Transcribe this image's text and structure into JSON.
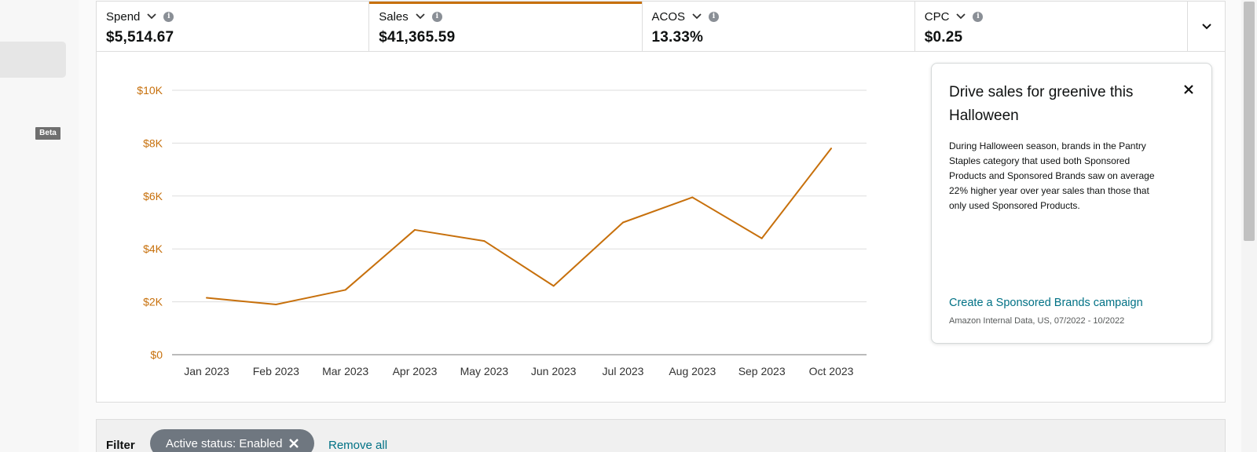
{
  "sidebar": {
    "beta_badge": "Beta"
  },
  "metrics": [
    {
      "label": "Spend",
      "value": "$5,514.67",
      "selected": false
    },
    {
      "label": "Sales",
      "value": "$41,365.59",
      "selected": true
    },
    {
      "label": "ACOS",
      "value": "13.33%",
      "selected": false
    },
    {
      "label": "CPC",
      "value": "$0.25",
      "selected": false
    }
  ],
  "icons": {
    "info": "info-icon",
    "dropdown": "chevron-down-icon",
    "close": "close-icon",
    "chip_remove": "close-icon"
  },
  "colors": {
    "accent": "#c7700c",
    "link": "#007185",
    "gridline": "#dddddd",
    "chip_bg": "#6f7780"
  },
  "chart_data": {
    "type": "line",
    "categories": [
      "Jan 2023",
      "Feb 2023",
      "Mar 2023",
      "Apr 2023",
      "May 2023",
      "Jun 2023",
      "Jul 2023",
      "Aug 2023",
      "Sep 2023",
      "Oct 2023"
    ],
    "series": [
      {
        "values": [
          2150,
          1900,
          2450,
          4720,
          4300,
          2600,
          5000,
          5950,
          4400,
          7800
        ]
      }
    ],
    "yticks": [
      "$0",
      "$2K",
      "$4K",
      "$6K",
      "$8K",
      "$10K"
    ],
    "ylim": [
      0,
      10000
    ],
    "grid": true,
    "color": "#c7700c"
  },
  "promo": {
    "title": "Drive sales for greenive this Halloween",
    "body": "During Halloween season, brands in the Pantry Staples category that used both Sponsored Products and Sponsored Brands saw on average 22% higher year over year sales than those that only used Sponsored Products.",
    "link": "Create a Sponsored Brands campaign",
    "source": "Amazon Internal Data, US, 07/2022 - 10/2022"
  },
  "filter": {
    "label": "Filter",
    "chip": "Active status: Enabled",
    "remove_all": "Remove all"
  }
}
